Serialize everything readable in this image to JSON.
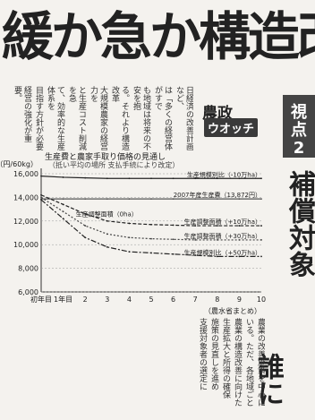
{
  "headline": "緩か急か構造改",
  "corner": {
    "line1": "視",
    "line2": "点",
    "line3": "2"
  },
  "column_name": {
    "kanji": "農政",
    "katakana": "ウオッチ"
  },
  "subhead_right": "補償対象",
  "subhead_bottom": "誰に",
  "body_upper": [
    "日経済の改善計画など、",
    "は「多くの経営体がすで",
    "も地域は将来の不安を抱",
    "る。それより構造改革",
    "大規模農家の経営力を",
    "と生産コスト削減を急",
    "て、効率的な生産体系を",
    "目指す方針が必要",
    "経営の強化が重要。"
  ],
  "body_lower": [
    "農業の改善施策を中心に",
    "いる。ただ、各地域ごと",
    "農業の構造改善に向けた",
    "生産拡大と所得の確保",
    "施策の見直しを進め",
    "支援対象者の選定に"
  ],
  "chart_data": {
    "type": "line",
    "title": "生産費と農家手取り価格の見通し",
    "subtitle": "（抵い平均の場所 支払手続により改定）",
    "ylabel": "（円/60kg）",
    "xlabel": "（農水省まとめ）",
    "y_ticks": [
      "16,000",
      "14,000",
      "12,000",
      "10,000",
      "8,000",
      "6,000"
    ],
    "x_ticks": [
      "初年目",
      "1年目",
      "2",
      "3",
      "4",
      "5",
      "6",
      "7",
      "8",
      "9",
      "10"
    ],
    "ylim": [
      6000,
      16000
    ],
    "series": [
      {
        "name": "生産規模別比（-10万ha）",
        "values": [
          15800,
          15700,
          15650,
          15600,
          15600,
          15600,
          15600,
          15600,
          15600,
          15600,
          15600
        ]
      },
      {
        "name": "2007年産生産費（13,872円）",
        "values": [
          13872,
          13872,
          13872,
          13872,
          13872,
          13872,
          13872,
          13872,
          13872,
          13872,
          13872
        ]
      },
      {
        "name": "生産調整面積（+10万ha）",
        "values": [
          14200,
          13400,
          12600,
          12000,
          11800,
          11700,
          11650,
          11600,
          11600,
          11600,
          11600
        ]
      },
      {
        "name": "生産調整面積（+30万ha）",
        "values": [
          14000,
          12800,
          11600,
          10900,
          10600,
          10500,
          10450,
          10400,
          10400,
          10400,
          10400
        ]
      },
      {
        "name": "生産規模別比（+50万ha）",
        "values": [
          13800,
          12200,
          10600,
          9800,
          9400,
          9300,
          9200,
          9100,
          9000,
          9000,
          9000
        ]
      }
    ],
    "annotation": "生産調整面積（0ha）"
  }
}
